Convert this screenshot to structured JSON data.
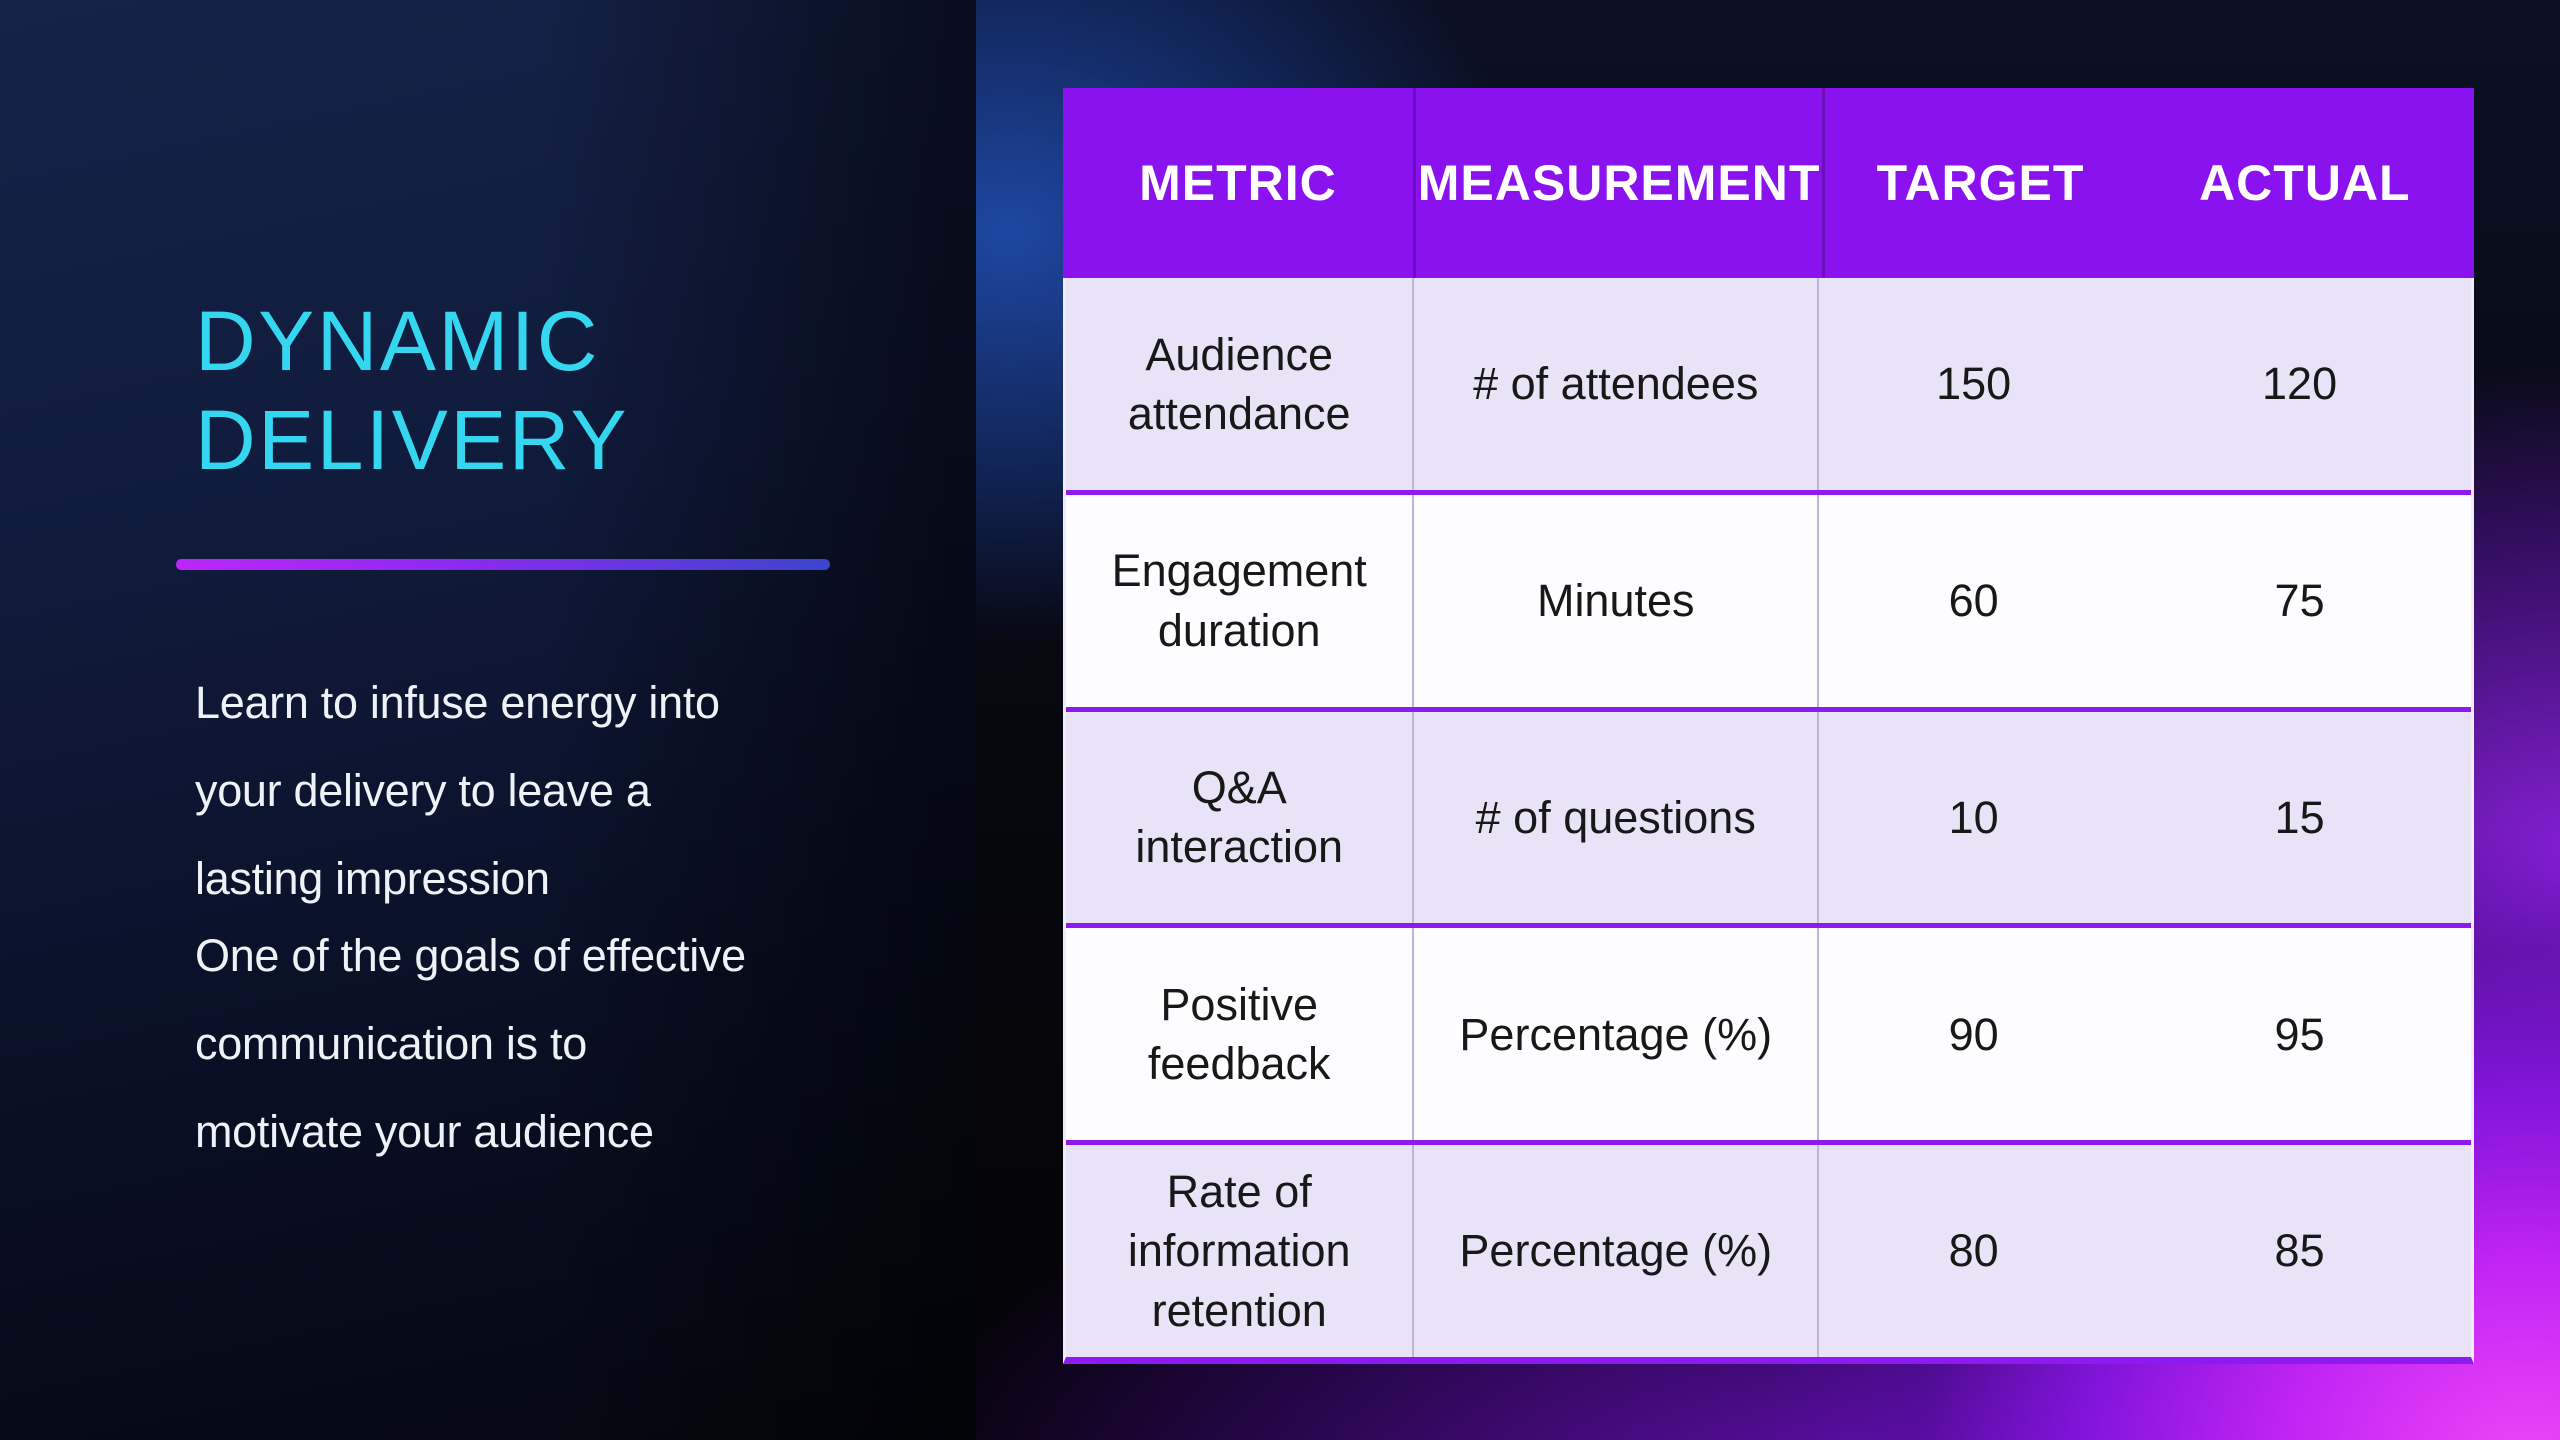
{
  "slide": {
    "title": "DYNAMIC\nDELIVERY",
    "paragraphs": {
      "p1": "Learn to infuse energy into\nyour delivery to leave a\nlasting impression",
      "p2": "One of the goals of effective\ncommunication is to\nmotivate your audience"
    }
  },
  "table": {
    "headers": [
      "METRIC",
      "MEASUREMENT",
      "TARGET",
      "ACTUAL"
    ],
    "rows": [
      {
        "metric": "Audience\nattendance",
        "measurement": "# of attendees",
        "target": "150",
        "actual": "120"
      },
      {
        "metric": "Engagement\nduration",
        "measurement": "Minutes",
        "target": "60",
        "actual": "75"
      },
      {
        "metric": "Q&A\ninteraction",
        "measurement": "# of questions",
        "target": "10",
        "actual": "15"
      },
      {
        "metric": "Positive\nfeedback",
        "measurement": "Percentage (%)",
        "target": "90",
        "actual": "95"
      },
      {
        "metric": "Rate of\ninformation\nretention",
        "measurement": "Percentage (%)",
        "target": "80",
        "actual": "85"
      }
    ]
  },
  "colors": {
    "title_cyan": "#35d7f0",
    "divider_gradient_start": "#bc26fb",
    "divider_gradient_end": "#3c45cd",
    "header_purple": "#8a12ee",
    "row_lavender": "#e9e3f7",
    "row_white": "#fdfdff",
    "row_separator_purple": "#8d1bf0",
    "body_text_white": "#eef2f7",
    "background_navy": "#101b3c",
    "background_magenta_glow": "#f046f6"
  }
}
